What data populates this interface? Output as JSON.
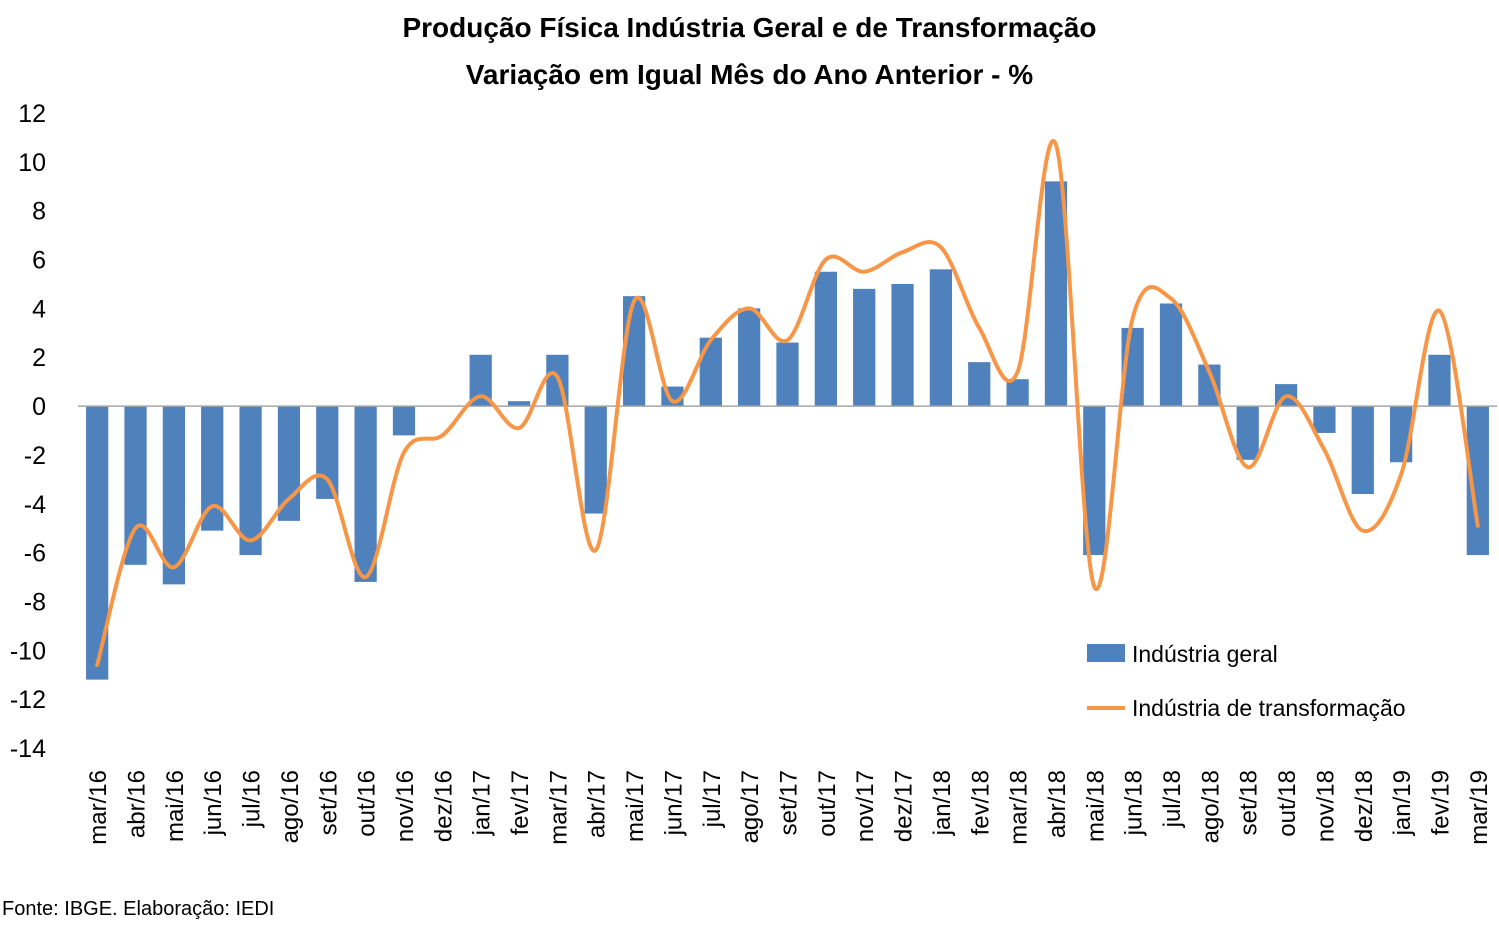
{
  "chart_data": {
    "type": "bar",
    "title": "Produção Física Indústria Geral e de Transformação",
    "subtitle": "Variação em Igual Mês do Ano Anterior - %",
    "categories": [
      "mar/16",
      "abr/16",
      "mai/16",
      "jun/16",
      "jul/16",
      "ago/16",
      "set/16",
      "out/16",
      "nov/16",
      "dez/16",
      "jan/17",
      "fev/17",
      "mar/17",
      "abr/17",
      "mai/17",
      "jun/17",
      "jul/17",
      "ago/17",
      "set/17",
      "out/17",
      "nov/17",
      "dez/17",
      "jan/18",
      "fev/18",
      "mar/18",
      "abr/18",
      "mai/18",
      "jun/18",
      "jul/18",
      "ago/18",
      "set/18",
      "out/18",
      "nov/18",
      "dez/18",
      "jan/19",
      "fev/19",
      "mar/19"
    ],
    "ylim": [
      -14,
      12
    ],
    "yticks": [
      12,
      10,
      8,
      6,
      4,
      2,
      0,
      -2,
      -4,
      -6,
      -8,
      -10,
      -12,
      -14
    ],
    "grid": false,
    "legend_position": "bottom-right",
    "series": [
      {
        "name": "Indústria geral",
        "type": "bar",
        "color": "#4f81bd",
        "values": [
          -11.2,
          -6.5,
          -7.3,
          -5.1,
          -6.1,
          -4.7,
          -3.8,
          -7.2,
          -1.2,
          0.0,
          2.1,
          0.2,
          2.1,
          -4.4,
          4.5,
          0.8,
          2.8,
          4.0,
          2.6,
          5.5,
          4.8,
          5.0,
          5.6,
          1.8,
          1.1,
          9.2,
          -6.1,
          3.2,
          4.2,
          1.7,
          -2.2,
          0.9,
          -1.1,
          -3.6,
          -2.3,
          2.1,
          -6.1
        ]
      },
      {
        "name": "Indústria de transformação",
        "type": "line",
        "color": "#f79646",
        "values": [
          -10.6,
          -5.0,
          -6.6,
          -4.1,
          -5.5,
          -3.8,
          -3.0,
          -7.0,
          -1.9,
          -1.2,
          0.4,
          -0.9,
          1.2,
          -5.9,
          4.3,
          0.2,
          2.7,
          4.0,
          2.7,
          6.0,
          5.5,
          6.3,
          6.5,
          3.2,
          1.4,
          10.7,
          -7.4,
          3.6,
          4.4,
          1.4,
          -2.5,
          0.4,
          -1.8,
          -5.1,
          -2.8,
          3.9,
          -4.9
        ]
      }
    ]
  },
  "footer": {
    "source": "Fonte: IBGE. Elaboração: IEDI"
  }
}
